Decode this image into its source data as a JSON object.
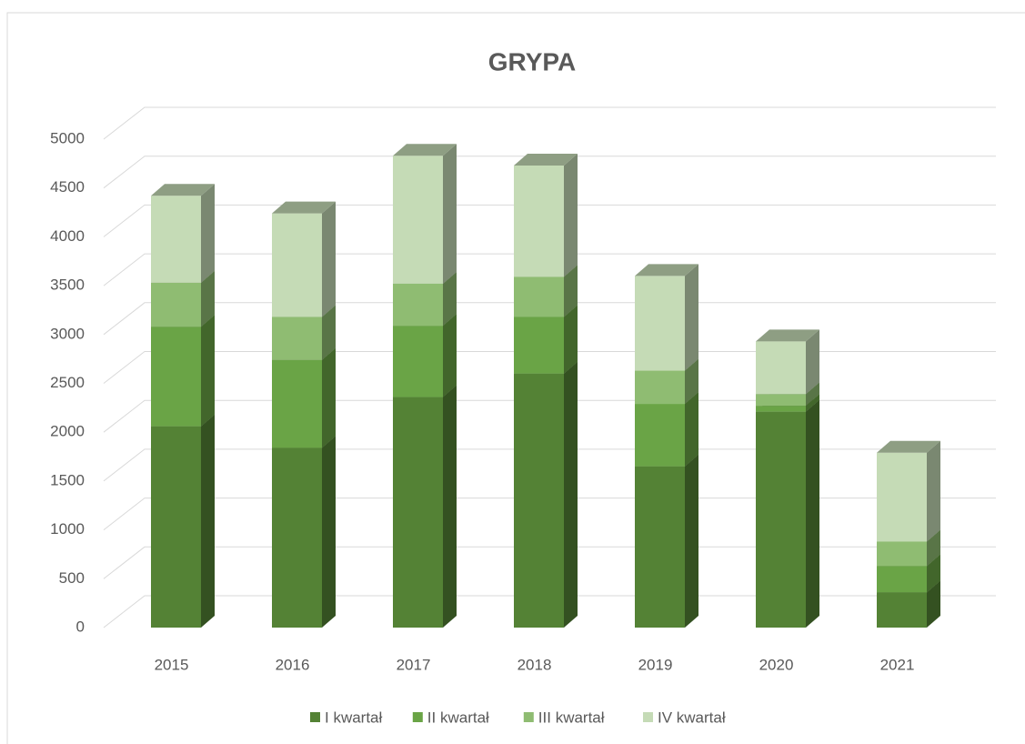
{
  "chart_data": {
    "type": "bar3d_stacked",
    "title": "GRYPA",
    "categories": [
      "2015",
      "2016",
      "2017",
      "2018",
      "2019",
      "2020",
      "2021"
    ],
    "series": [
      {
        "name": "I kwartał",
        "color": "#548235",
        "values": [
          2060,
          1840,
          2360,
          2600,
          1650,
          2210,
          360
        ]
      },
      {
        "name": "II kwartał",
        "color": "#6aa446",
        "values": [
          1020,
          900,
          730,
          580,
          640,
          60,
          270
        ]
      },
      {
        "name": "III kwartał",
        "color": "#8fbc72",
        "values": [
          450,
          440,
          430,
          410,
          340,
          120,
          250
        ]
      },
      {
        "name": "IV kwartał",
        "color": "#c5dbb6",
        "values": [
          890,
          1060,
          1310,
          1140,
          970,
          540,
          910
        ]
      }
    ],
    "ylim": [
      0,
      5000
    ],
    "yticks": [
      0,
      500,
      1000,
      1500,
      2000,
      2500,
      3000,
      3500,
      4000,
      4500,
      5000
    ],
    "grid": true,
    "legend": "bottom"
  }
}
